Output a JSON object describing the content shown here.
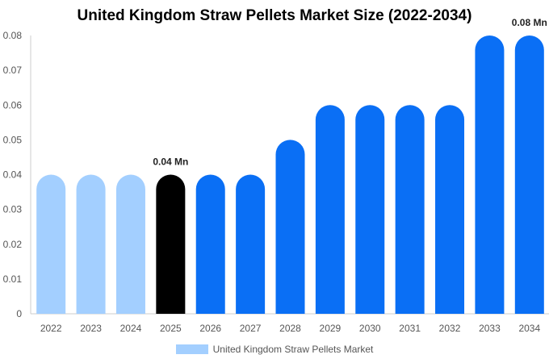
{
  "chart_data": {
    "type": "bar",
    "title": "United Kingdom Straw Pellets Market Size (2022-2034)",
    "categories": [
      "2022",
      "2023",
      "2024",
      "2025",
      "2026",
      "2027",
      "2028",
      "2029",
      "2030",
      "2031",
      "2032",
      "2033",
      "2034"
    ],
    "series": [
      {
        "name": "United Kingdom Straw Pellets Market",
        "values": [
          0.04,
          0.04,
          0.04,
          0.04,
          0.04,
          0.04,
          0.05,
          0.06,
          0.06,
          0.06,
          0.06,
          0.08,
          0.08
        ]
      }
    ],
    "bar_colors": [
      "#a3cfff",
      "#a3cfff",
      "#a3cfff",
      "#000000",
      "#0a6ff5",
      "#0a6ff5",
      "#0a6ff5",
      "#0a6ff5",
      "#0a6ff5",
      "#0a6ff5",
      "#0a6ff5",
      "#0a6ff5",
      "#0a6ff5"
    ],
    "data_labels": [
      {
        "category": "2025",
        "text": "0.04 Mn"
      },
      {
        "category": "2034",
        "text": "0.08 Mn"
      }
    ],
    "yticks": [
      "0",
      "0.01",
      "0.02",
      "0.03",
      "0.04",
      "0.05",
      "0.06",
      "0.07",
      "0.08"
    ],
    "ylim": [
      0,
      0.08
    ],
    "xlabel": "",
    "ylabel": "",
    "grid": false,
    "legend_position": "bottom",
    "legend_color": "#a3cfff"
  }
}
